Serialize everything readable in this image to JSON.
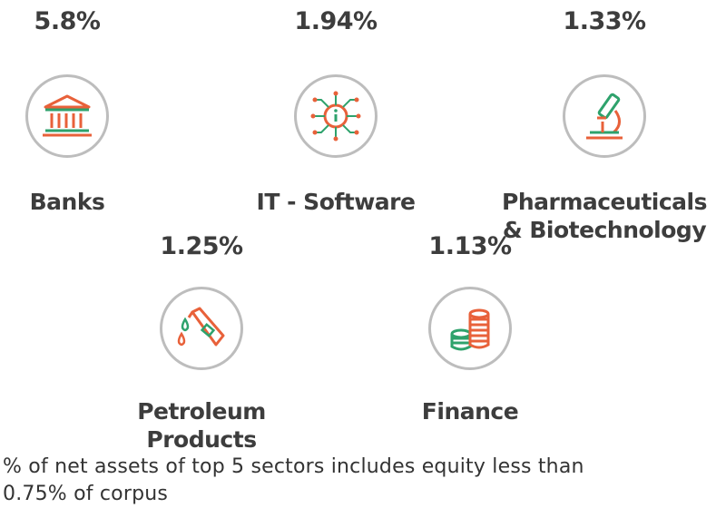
{
  "colors": {
    "orange": "#e8613a",
    "green": "#2ea26c",
    "ring": "#bdbdbd",
    "text": "#3d3d3d"
  },
  "sectors": [
    {
      "percent": "5.8%",
      "label_lines": [
        "Banks"
      ],
      "icon": "bank-building-icon"
    },
    {
      "percent": "1.94%",
      "label_lines": [
        "IT - Software"
      ],
      "icon": "circuit-chip-icon"
    },
    {
      "percent": "1.33%",
      "label_lines": [
        "Pharmaceuticals",
        "& Biotechnology"
      ],
      "icon": "microscope-icon"
    },
    {
      "percent": "1.25%",
      "label_lines": [
        "Petroleum",
        "Products"
      ],
      "icon": "fuel-nozzle-icon"
    },
    {
      "percent": "1.13%",
      "label_lines": [
        "Finance"
      ],
      "icon": "coin-stack-icon"
    }
  ],
  "footnote": "% of net assets of top 5 sectors includes equity less than 0.75% of corpus"
}
